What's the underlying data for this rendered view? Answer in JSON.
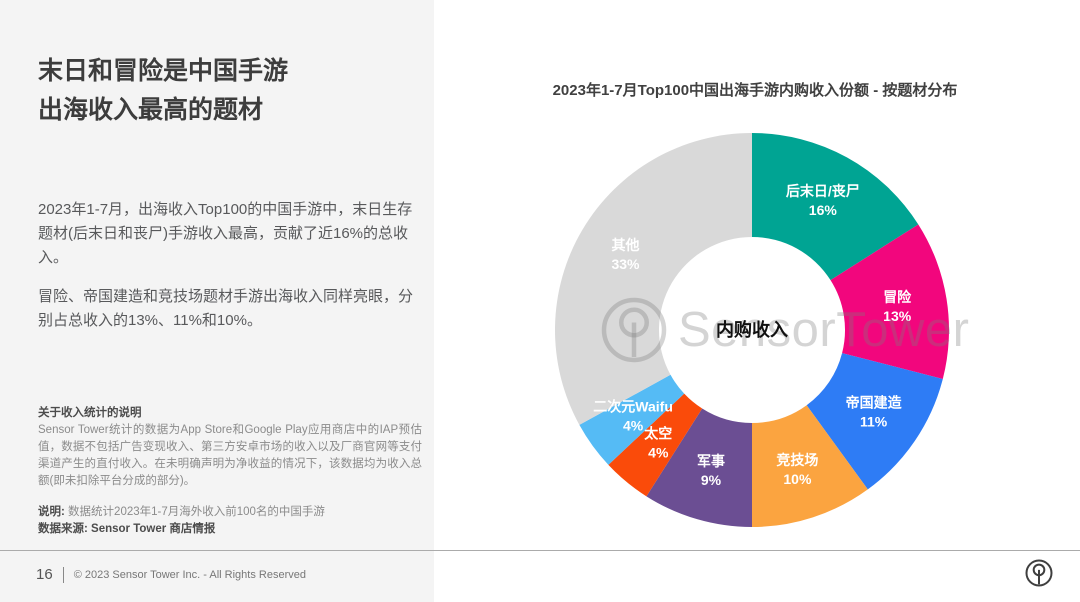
{
  "left": {
    "title": "末日和冒险是中国手游\n出海收入最高的题材",
    "paragraphs": [
      "2023年1-7月，出海收入Top100的中国手游中，末日生存题材(后末日和丧尸)手游收入最高，贡献了近16%的总收入。",
      "冒险、帝国建造和竞技场题材手游出海收入同样亮眼，分别占总收入的13%、11%和10%。"
    ],
    "notes": {
      "heading": "关于收入统计的说明",
      "body": "Sensor Tower统计的数据为App Store和Google Play应用商店中的IAP预估值，数据不包括广告变现收入、第三方安卓市场的收入以及厂商官网等支付渠道产生的直付收入。在未明确声明为净收益的情况下，该数据均为收入总额(即未扣除平台分成的部分)。",
      "stat_label": "说明:",
      "stat_text": "数据统计2023年1-7月海外收入前100名的中国手游",
      "source": "数据来源: Sensor Tower 商店情报"
    }
  },
  "footer": {
    "page_number": "16",
    "copyright": "© 2023 Sensor Tower Inc. - All Rights Reserved"
  },
  "chart_data": {
    "type": "pie",
    "subtype": "donut",
    "title": "2023年1-7月Top100中国出海手游内购收入份额 - 按题材分布",
    "center_label": "内购收入",
    "watermark": "SensorTower",
    "unit": "%",
    "start_angle_deg": 0,
    "direction": "clockwise",
    "inner_radius_ratio": 0.47,
    "label_color": "#ffffff",
    "segments": [
      {
        "label": "后末日/丧尸",
        "value": 16,
        "color": "#00a493"
      },
      {
        "label": "冒险",
        "value": 13,
        "color": "#f2067d"
      },
      {
        "label": "帝国建造",
        "value": 11,
        "color": "#2e7cf5"
      },
      {
        "label": "竞技场",
        "value": 10,
        "color": "#fba440"
      },
      {
        "label": "军事",
        "value": 9,
        "color": "#6b4e93"
      },
      {
        "label": "太空",
        "value": 4,
        "color": "#fa4b0a"
      },
      {
        "label": "二次元Waifu",
        "value": 4,
        "color": "#55bbf5"
      },
      {
        "label": "其他",
        "value": 33,
        "color": "#d9d9d9"
      }
    ]
  }
}
